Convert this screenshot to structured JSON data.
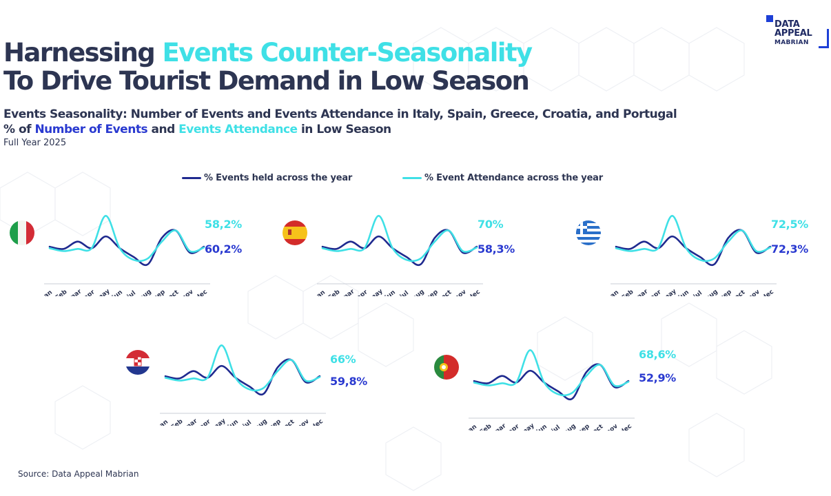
{
  "logo": {
    "line1": "DATA",
    "line2": "APPEAL",
    "line3": "MABRIAN"
  },
  "title": {
    "part1": "Harnessing ",
    "accent": "Events Counter-Seasonality",
    "line2": "To Drive Tourist Demand in Low Season"
  },
  "subtitle": {
    "line1": "Events Seasonality: Number of Events and Events Attendance in Italy, Spain, Greece, Croatia, and Portugal",
    "line2_prefix": "% of ",
    "line2_blue": "Number of Events",
    "line2_mid": " and ",
    "line2_cyan": "Events Attendance",
    "line2_suffix": " in Low Season",
    "line3": "Full Year 2025"
  },
  "legend": {
    "events": "% Events held across the year",
    "attendance": "% Event Attendance across the year"
  },
  "colors": {
    "events": "#1f2a8f",
    "attendance": "#3fe0e6",
    "title": "#2d3552",
    "blue_text": "#2a3ad0"
  },
  "chart_data": {
    "type": "line",
    "categories": [
      "Jan",
      "Feb",
      "mar",
      "apr",
      "may",
      "jun",
      "jul",
      "aug",
      "sep",
      "oct",
      "nov",
      "dec"
    ],
    "series_template": {
      "events": [
        0.08,
        0.05,
        0.15,
        0.06,
        0.22,
        0.06,
        -0.06,
        -0.16,
        0.2,
        0.3,
        0.0,
        0.08
      ],
      "attendance": [
        0.06,
        0.02,
        0.05,
        0.06,
        0.5,
        0.06,
        -0.1,
        -0.08,
        0.15,
        0.3,
        0.02,
        0.07
      ]
    },
    "panels": [
      {
        "country": "Italy",
        "flag": "italy",
        "attendance_low_season": "58,2%",
        "events_low_season": "60,2%"
      },
      {
        "country": "Spain",
        "flag": "spain",
        "attendance_low_season": "70%",
        "events_low_season": "58,3%"
      },
      {
        "country": "Greece",
        "flag": "greece",
        "attendance_low_season": "72,5%",
        "events_low_season": "72,3%"
      },
      {
        "country": "Croatia",
        "flag": "croatia",
        "attendance_low_season": "66%",
        "events_low_season": "59,8%"
      },
      {
        "country": "Portugal",
        "flag": "portugal",
        "attendance_low_season": "68,6%",
        "events_low_season": "52,9%"
      }
    ]
  },
  "source": "Source: Data Appeal Mabrian"
}
